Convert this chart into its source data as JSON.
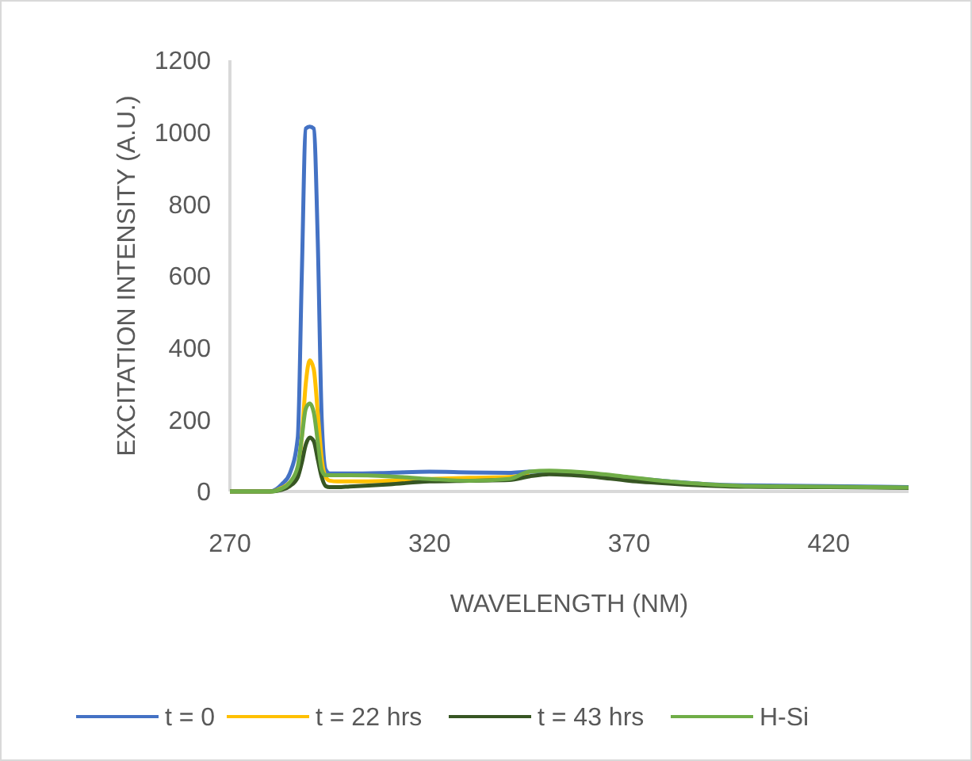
{
  "chart_data": {
    "type": "line",
    "xlabel": "WAVELENGTH (NM)",
    "ylabel": "EXCITATION INTENSITY (A.U.)",
    "x": [
      270,
      280,
      283,
      285,
      287,
      288,
      289,
      290,
      291,
      292,
      293,
      294,
      295,
      297,
      300,
      310,
      320,
      330,
      340,
      345,
      350,
      360,
      370,
      380,
      390,
      400,
      420,
      440
    ],
    "series": [
      {
        "name": "t = 0",
        "color": "#4472c4",
        "values": [
          0,
          0,
          20,
          50,
          150,
          600,
          1010,
          1015,
          1010,
          700,
          200,
          60,
          50,
          50,
          50,
          52,
          55,
          53,
          52,
          55,
          55,
          48,
          38,
          28,
          20,
          17,
          15,
          12
        ]
      },
      {
        "name": "t = 22 hrs",
        "color": "#ffc000",
        "values": [
          0,
          0,
          10,
          25,
          60,
          150,
          300,
          365,
          340,
          220,
          90,
          40,
          30,
          28,
          28,
          30,
          35,
          38,
          40,
          48,
          null,
          null,
          null,
          null,
          null,
          null,
          null,
          null
        ]
      },
      {
        "name": "t = 43 hrs",
        "color": "#375623",
        "values": [
          0,
          0,
          5,
          15,
          40,
          80,
          130,
          150,
          140,
          90,
          40,
          15,
          12,
          12,
          14,
          20,
          28,
          30,
          32,
          42,
          48,
          42,
          30,
          22,
          16,
          13,
          12,
          10
        ]
      },
      {
        "name": "H-Si",
        "color": "#70ad47",
        "values": [
          0,
          0,
          8,
          25,
          70,
          150,
          230,
          245,
          220,
          140,
          60,
          45,
          45,
          45,
          45,
          42,
          35,
          30,
          35,
          55,
          58,
          52,
          40,
          28,
          20,
          15,
          13,
          11
        ]
      }
    ],
    "xlim": [
      270,
      440
    ],
    "xticks": [
      270,
      320,
      370,
      420
    ],
    "ylim": [
      0,
      1200
    ],
    "yticks": [
      0,
      200,
      400,
      600,
      800,
      1000,
      1200
    ],
    "grid": false,
    "legend": "bottom",
    "line_style": "solid"
  }
}
